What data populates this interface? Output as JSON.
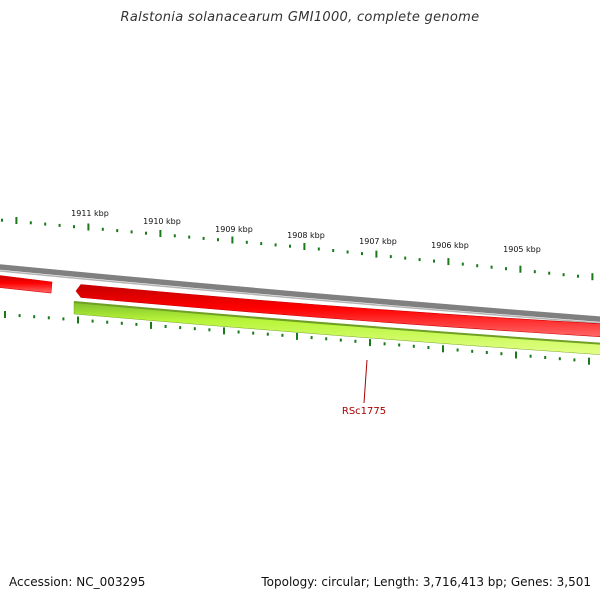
{
  "title": "Ralstonia solanacearum GMI1000, complete genome",
  "footer": {
    "accession": "Accession: NC_003295",
    "summary": "Topology: circular; Length: 3,716,413 bp; Genes: 3,501"
  },
  "ruler": {
    "labels": [
      "1911 kbp",
      "1910 kbp",
      "1909 kbp",
      "1908 kbp",
      "1907 kbp",
      "1906 kbp",
      "1905 kbp"
    ],
    "color": "#1a7a1a"
  },
  "genes": [
    {
      "label": "RSc1775",
      "color": "#aa0000"
    }
  ],
  "colors": {
    "backbone": "#808080",
    "forward_track": "#ee0000",
    "reverse_track": "#bfff3f",
    "tick": "#1a7a1a",
    "gene_label": "#aa0000"
  }
}
